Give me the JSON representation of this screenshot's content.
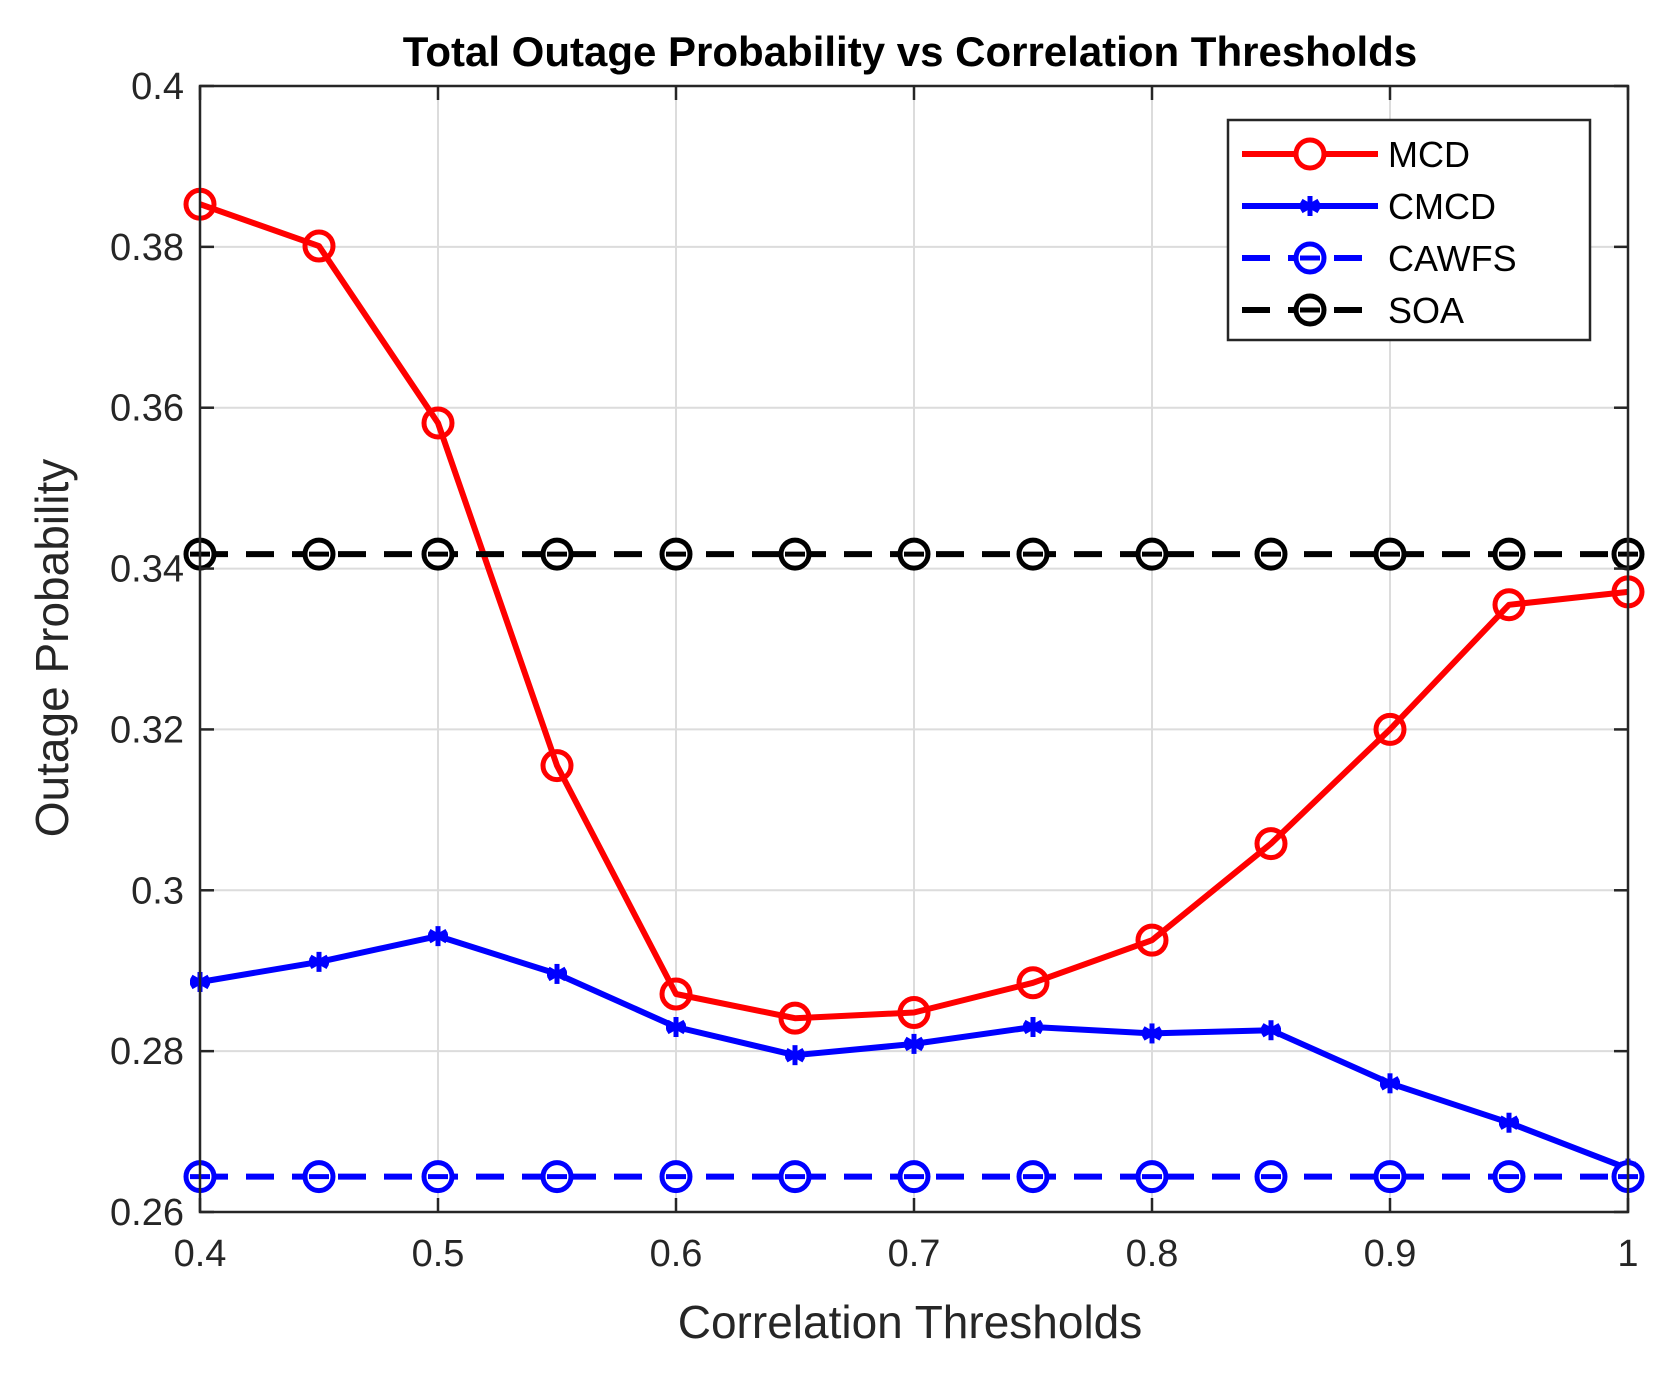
{
  "chart_data": {
    "type": "line",
    "title": "Total Outage Probability vs Correlation Thresholds",
    "xlabel": "Correlation Thresholds",
    "ylabel": "Outage Probability",
    "xlim": [
      0.4,
      1.0
    ],
    "ylim": [
      0.26,
      0.4
    ],
    "xticks": [
      0.4,
      0.5,
      0.6,
      0.7,
      0.8,
      0.9,
      1.0
    ],
    "xtick_labels": [
      "0.4",
      "0.5",
      "0.6",
      "0.7",
      "0.8",
      "0.9",
      "1"
    ],
    "yticks": [
      0.26,
      0.28,
      0.3,
      0.32,
      0.34,
      0.36,
      0.38,
      0.4
    ],
    "ytick_labels": [
      "0.26",
      "0.28",
      "0.3",
      "0.32",
      "0.34",
      "0.36",
      "0.38",
      "0.4"
    ],
    "grid": true,
    "legend_position": "top-right",
    "x": [
      0.4,
      0.45,
      0.5,
      0.55,
      0.6,
      0.65,
      0.7,
      0.75,
      0.8,
      0.85,
      0.9,
      0.95,
      1.0
    ],
    "series": [
      {
        "name": "MCD",
        "color": "#ff0000",
        "line_style": "solid",
        "marker": "circle",
        "values": [
          0.3853,
          0.3801,
          0.3581,
          0.3155,
          0.2871,
          0.2841,
          0.2848,
          0.2885,
          0.2938,
          0.3058,
          0.32,
          0.3355,
          0.3371
        ]
      },
      {
        "name": "CMCD",
        "color": "#0000ff",
        "line_style": "solid",
        "marker": "asterisk",
        "values": [
          0.2886,
          0.2911,
          0.2943,
          0.2896,
          0.283,
          0.2795,
          0.2809,
          0.283,
          0.2822,
          0.2826,
          0.276,
          0.2711,
          0.2654
        ]
      },
      {
        "name": "CAWFS",
        "color": "#0000ff",
        "line_style": "dashed",
        "marker": "circle",
        "values": [
          0.2644,
          0.2644,
          0.2644,
          0.2644,
          0.2644,
          0.2644,
          0.2644,
          0.2644,
          0.2644,
          0.2644,
          0.2644,
          0.2644,
          0.2644
        ]
      },
      {
        "name": "SOA",
        "color": "#000000",
        "line_style": "dashed",
        "marker": "circle",
        "values": [
          0.3418,
          0.3418,
          0.3418,
          0.3418,
          0.3418,
          0.3418,
          0.3418,
          0.3418,
          0.3418,
          0.3418,
          0.3418,
          0.3418,
          0.3418
        ]
      }
    ]
  }
}
